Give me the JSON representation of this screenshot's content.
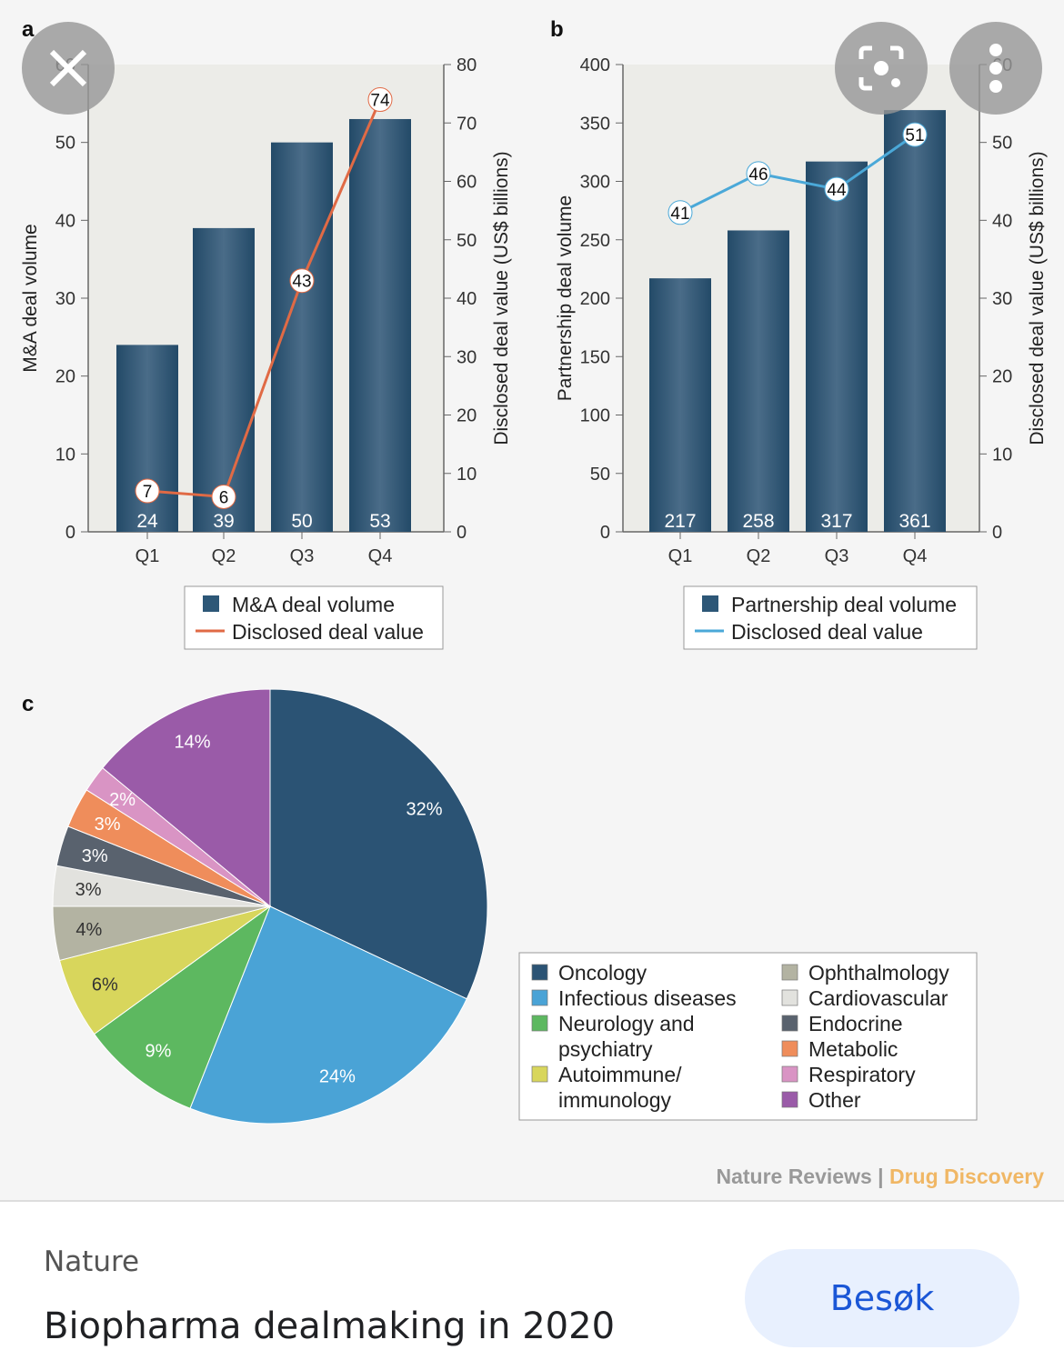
{
  "viewer": {
    "icons": {
      "close": "close-icon",
      "lens": "lens-search-icon",
      "more": "more-vert-icon"
    },
    "credit": {
      "journal": "Nature Reviews",
      "separator": "|",
      "section": "Drug Discovery"
    }
  },
  "chart_data": [
    {
      "panel": "a",
      "type": "bar+line",
      "categories": [
        "Q1",
        "Q2",
        "Q3",
        "Q4"
      ],
      "ylabel": "M&A deal volume",
      "ylabel_right": "Disclosed deal value (US$ billions)",
      "ylim": [
        0,
        60
      ],
      "yticks": [
        0,
        10,
        20,
        30,
        40,
        50,
        60
      ],
      "ylim_right": [
        0,
        80
      ],
      "yticks_right": [
        0,
        10,
        20,
        30,
        40,
        50,
        60,
        70,
        80
      ],
      "series": [
        {
          "name": "M&A deal volume",
          "type": "bar",
          "axis": "left",
          "values": [
            24,
            39,
            50,
            53
          ],
          "color": "#2d5777"
        },
        {
          "name": "Disclosed deal value",
          "type": "line",
          "axis": "right",
          "values": [
            7,
            6,
            43,
            74
          ],
          "color": "#e06a45"
        }
      ]
    },
    {
      "panel": "b",
      "type": "bar+line",
      "categories": [
        "Q1",
        "Q2",
        "Q3",
        "Q4"
      ],
      "ylabel": "Partnership deal volume",
      "ylabel_right": "Disclosed deal value (US$ billions)",
      "ylim": [
        0,
        400
      ],
      "yticks": [
        0,
        50,
        100,
        150,
        200,
        250,
        300,
        350,
        400
      ],
      "ylim_right": [
        0,
        60
      ],
      "yticks_right": [
        0,
        10,
        20,
        30,
        40,
        50,
        60
      ],
      "series": [
        {
          "name": "Partnership deal volume",
          "type": "bar",
          "axis": "left",
          "values": [
            217,
            258,
            317,
            361
          ],
          "color": "#2d5777"
        },
        {
          "name": "Disclosed deal value",
          "type": "line",
          "axis": "right",
          "values": [
            41,
            46,
            44,
            51
          ],
          "color": "#4aa8d8"
        }
      ]
    },
    {
      "panel": "c",
      "type": "pie",
      "slices": [
        {
          "label": "Oncology",
          "value": 32,
          "color": "#2b5374"
        },
        {
          "label": "Infectious diseases",
          "value": 24,
          "color": "#4aa3d6"
        },
        {
          "label": "Neurology and psychiatry",
          "value": 9,
          "color": "#5db860"
        },
        {
          "label": "Autoimmune/ immunology",
          "value": 6,
          "color": "#d8d65c"
        },
        {
          "label": "Ophthalmology",
          "value": 4,
          "color": "#b3b3a2"
        },
        {
          "label": "Cardiovascular",
          "value": 3,
          "color": "#e2e2de"
        },
        {
          "label": "Endocrine",
          "value": 3,
          "color": "#59626e"
        },
        {
          "label": "Metabolic",
          "value": 3,
          "color": "#ef8d5b"
        },
        {
          "label": "Respiratory",
          "value": 2,
          "color": "#d994c4"
        },
        {
          "label": "Other",
          "value": 14,
          "color": "#9a5ba8"
        }
      ]
    }
  ],
  "bottom": {
    "source": "Nature",
    "title": "Biopharma dealmaking in 2020",
    "visit_label": "Besøk"
  }
}
